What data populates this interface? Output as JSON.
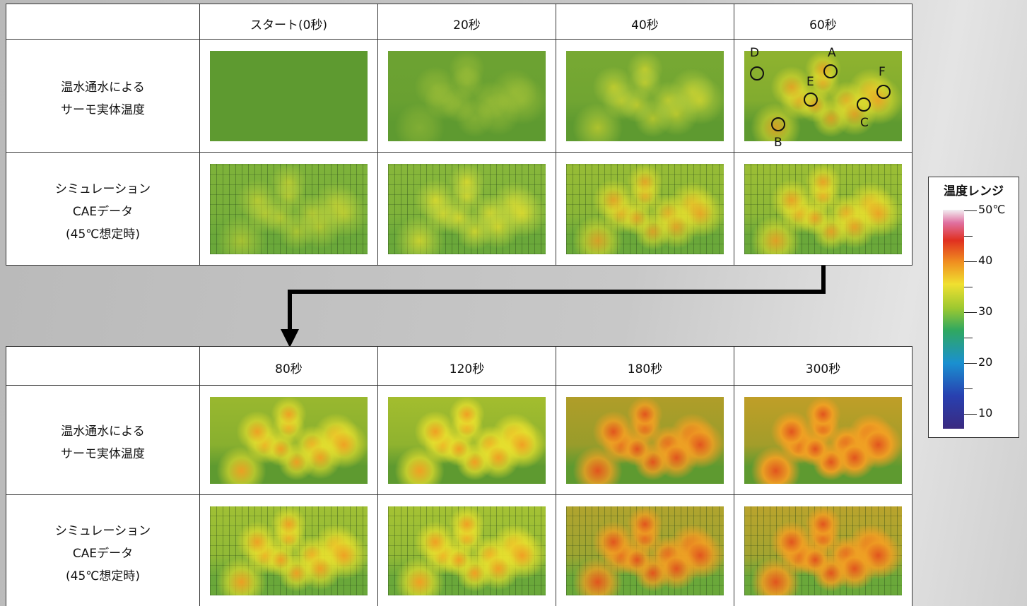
{
  "tables": [
    {
      "header": [
        "スタート(0秒)",
        "20秒",
        "40秒",
        "60秒"
      ],
      "rows": [
        {
          "label": [
            "温水通水による",
            "サーモ実体温度"
          ]
        },
        {
          "label": [
            "シミュレーション",
            "CAEデータ",
            "(45℃想定時)"
          ]
        }
      ]
    },
    {
      "header": [
        "80秒",
        "120秒",
        "180秒",
        "300秒"
      ],
      "rows": [
        {
          "label": [
            "温水通水による",
            "サーモ実体温度"
          ]
        },
        {
          "label": [
            "シミュレーション",
            "CAEデータ",
            "(45℃想定時)"
          ]
        }
      ]
    }
  ],
  "markers": [
    "A",
    "B",
    "C",
    "D",
    "E",
    "F"
  ],
  "legend": {
    "title": "温度レンジ",
    "labels": [
      "50℃",
      "40",
      "30",
      "20",
      "10"
    ]
  }
}
